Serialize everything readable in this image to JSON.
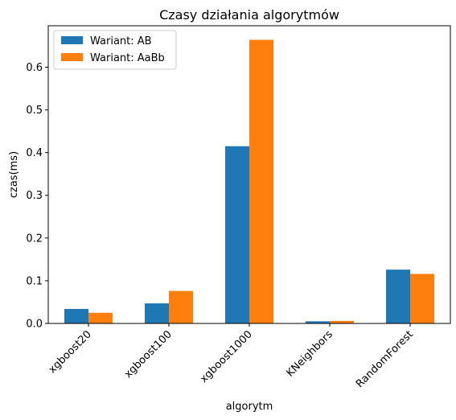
{
  "chart_data": {
    "type": "bar",
    "title": "Czasy działania algorytmów",
    "xlabel": "algorytm",
    "ylabel": "czas(ms)",
    "categories": [
      "xgboost20",
      "xgboost100",
      "xgboost1000",
      "KNeighbors",
      "RandomForest"
    ],
    "series": [
      {
        "name": "Wariant: AB",
        "values": [
          0.034,
          0.047,
          0.415,
          0.005,
          0.126
        ],
        "color": "#1f77b4"
      },
      {
        "name": "Wariant: AaBb",
        "values": [
          0.025,
          0.076,
          0.664,
          0.006,
          0.116
        ],
        "color": "#ff7f0e"
      }
    ],
    "ylim": [
      0,
      0.697
    ],
    "yticks": [
      0.0,
      0.1,
      0.2,
      0.3,
      0.4,
      0.5,
      0.6
    ],
    "ytick_labels": [
      "0.0",
      "0.1",
      "0.2",
      "0.3",
      "0.4",
      "0.5",
      "0.6"
    ],
    "legend": "top-left",
    "grid": false
  }
}
